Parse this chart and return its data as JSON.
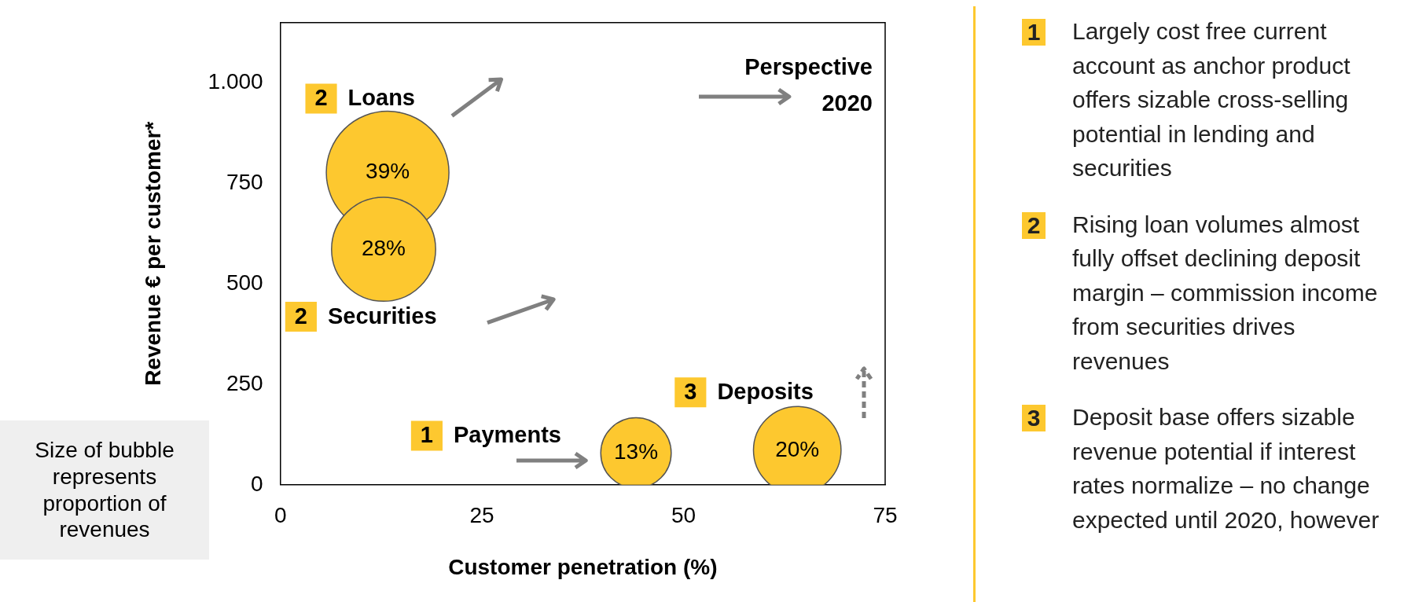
{
  "chart_data": {
    "type": "bubble",
    "xlabel": "Customer penetration (%)",
    "ylabel": "Revenue € per customer*",
    "x": [
      13.3,
      12.8,
      44.1,
      64.1
    ],
    "values": [
      777,
      586,
      79,
      86
    ],
    "sizes": [
      1,
      0.72,
      0.33,
      0.51
    ],
    "color": "#fdc82f",
    "xlim": [
      0,
      75
    ],
    "xticks": [
      0,
      25,
      50,
      75
    ],
    "ylim": [
      0,
      1150
    ],
    "yticks": [
      0,
      250,
      500,
      750,
      {
        "value": 1000,
        "label": "1.000"
      }
    ],
    "grid": false,
    "legend": false,
    "annotations": [
      "Size of bubble represents proportion of revenues",
      "Perspective 2020",
      "1 Largely cost free current account as anchor product offers sizable cross-selling potential in lending and securities",
      "2 Rising loan volumes almost fully offset declining deposit margin – commission income from securities drives revenues",
      "3 Deposit base offers sizable revenue potential if interest rates normalize – no change expected until 2020, however",
      "2 Loans",
      "2 Securities",
      "1 Payments",
      "3 Deposits",
      {
        "text": "39%",
        "x": 13.3,
        "y": 777
      },
      {
        "text": "28%",
        "x": 12.8,
        "y": 586
      },
      {
        "text": "13%",
        "x": 44.1,
        "y": 79
      },
      {
        "text": "20%",
        "x": 64.1,
        "y": 86
      }
    ]
  }
}
